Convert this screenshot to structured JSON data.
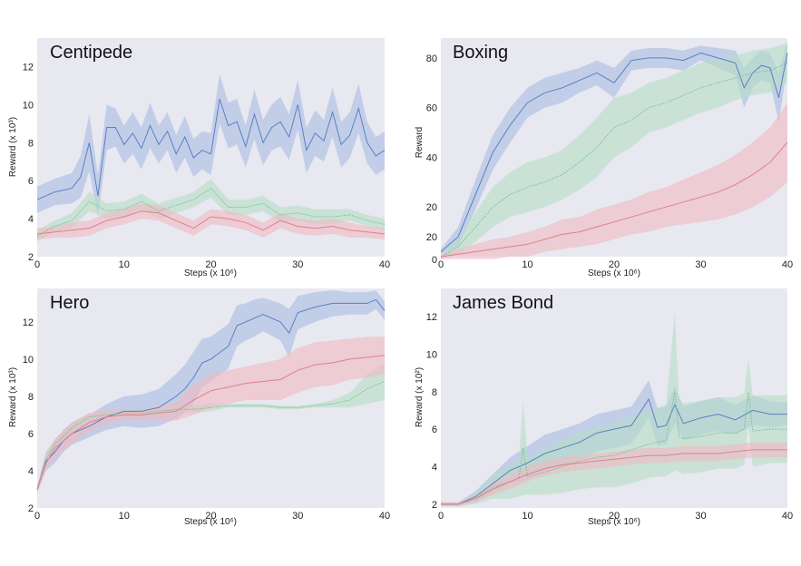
{
  "chart_data": [
    {
      "type": "line",
      "title": "Centipede",
      "xlabel": "Steps (x 10⁶)",
      "ylabel": "Reward (x 10³)",
      "xlim": [
        0,
        40
      ],
      "ylim": [
        2,
        13.5
      ],
      "xticks": [
        "0",
        "10",
        "20",
        "30",
        "40"
      ],
      "yticks": [
        "2",
        "4",
        "6",
        "8",
        "10",
        "12"
      ],
      "grid": false,
      "series": [
        {
          "name": "blue",
          "color": "#5b7fc2",
          "band_color": "#a9bde3",
          "style": "solid",
          "x": [
            0,
            2,
            4,
            5,
            6,
            7,
            8,
            9,
            10,
            11,
            12,
            13,
            14,
            15,
            16,
            17,
            18,
            19,
            20,
            21,
            22,
            23,
            24,
            25,
            26,
            27,
            28,
            29,
            30,
            31,
            32,
            33,
            34,
            35,
            36,
            37,
            38,
            39,
            40
          ],
          "mean": [
            5.0,
            5.4,
            5.6,
            6.2,
            8.0,
            5.2,
            8.8,
            8.8,
            7.9,
            8.5,
            7.7,
            8.9,
            7.9,
            8.6,
            7.4,
            8.3,
            7.2,
            7.6,
            7.4,
            10.3,
            8.9,
            9.1,
            7.8,
            9.5,
            8.0,
            8.8,
            9.1,
            8.3,
            10.0,
            7.6,
            8.5,
            8.1,
            9.6,
            7.9,
            8.4,
            9.8,
            8.0,
            7.3,
            7.6
          ],
          "band": [
            0.7,
            0.7,
            0.8,
            1.1,
            1.5,
            1.1,
            1.2,
            1.0,
            1.0,
            1.1,
            1.1,
            1.2,
            1.0,
            1.0,
            1.0,
            1.1,
            1.0,
            1.0,
            1.1,
            1.3,
            1.2,
            1.2,
            1.1,
            1.3,
            1.2,
            1.2,
            1.3,
            1.2,
            1.3,
            1.2,
            1.2,
            1.1,
            1.3,
            1.2,
            1.2,
            1.3,
            1.1,
            1.0,
            1.0
          ]
        },
        {
          "name": "green",
          "color": "#6fbe8f",
          "band_color": "#b5ddc4",
          "style": "dotted",
          "x": [
            0,
            2,
            4,
            6,
            8,
            10,
            12,
            14,
            16,
            18,
            20,
            22,
            24,
            26,
            28,
            30,
            32,
            34,
            36,
            38,
            40
          ],
          "mean": [
            3.1,
            3.6,
            3.9,
            4.9,
            4.4,
            4.5,
            4.9,
            4.4,
            4.7,
            5.0,
            5.6,
            4.6,
            4.6,
            4.8,
            4.2,
            4.3,
            4.1,
            4.1,
            4.2,
            3.9,
            3.7
          ],
          "band": [
            0.3,
            0.3,
            0.4,
            0.5,
            0.4,
            0.4,
            0.4,
            0.4,
            0.4,
            0.4,
            0.5,
            0.4,
            0.4,
            0.4,
            0.4,
            0.4,
            0.4,
            0.4,
            0.3,
            0.3,
            0.3
          ]
        },
        {
          "name": "red",
          "color": "#e07f8e",
          "band_color": "#f0b9c2",
          "style": "solid",
          "x": [
            0,
            2,
            4,
            6,
            8,
            10,
            12,
            14,
            16,
            18,
            20,
            22,
            24,
            26,
            28,
            30,
            32,
            34,
            36,
            38,
            40
          ],
          "mean": [
            3.2,
            3.3,
            3.4,
            3.5,
            3.9,
            4.1,
            4.4,
            4.3,
            3.9,
            3.5,
            4.1,
            4.0,
            3.8,
            3.4,
            3.9,
            3.6,
            3.5,
            3.6,
            3.4,
            3.3,
            3.2
          ],
          "band": [
            0.3,
            0.3,
            0.4,
            0.4,
            0.4,
            0.4,
            0.4,
            0.4,
            0.4,
            0.4,
            0.4,
            0.4,
            0.4,
            0.4,
            0.4,
            0.4,
            0.4,
            0.4,
            0.4,
            0.3,
            0.3
          ]
        }
      ]
    },
    {
      "type": "line",
      "title": "Boxing",
      "xlabel": "Steps (x 10⁶)",
      "ylabel": "Reward",
      "xlim": [
        0,
        40
      ],
      "ylim": [
        0,
        88
      ],
      "xticks": [
        "0",
        "10",
        "20",
        "30",
        "40"
      ],
      "yticks": [
        "0",
        "20",
        "20",
        "40",
        "60",
        "80"
      ],
      "grid": false,
      "series": [
        {
          "name": "blue",
          "color": "#5b7fc2",
          "band_color": "#a9bde3",
          "style": "solid",
          "x": [
            0,
            2,
            4,
            6,
            8,
            10,
            12,
            14,
            16,
            18,
            20,
            22,
            24,
            26,
            28,
            30,
            32,
            34,
            35,
            36,
            37,
            38,
            39,
            40
          ],
          "mean": [
            2,
            8,
            25,
            42,
            53,
            62,
            66,
            68,
            71,
            74,
            70,
            79,
            80,
            80,
            79,
            82,
            80,
            78,
            68,
            74,
            77,
            76,
            64,
            82
          ],
          "band": [
            1,
            4,
            6,
            7,
            7,
            6,
            6,
            6,
            5,
            5,
            6,
            4,
            4,
            4,
            4,
            3,
            4,
            5,
            8,
            6,
            6,
            6,
            10,
            5
          ]
        },
        {
          "name": "green",
          "color": "#6fbe8f",
          "band_color": "#b5ddc4",
          "style": "dotted",
          "x": [
            0,
            2,
            4,
            6,
            8,
            10,
            12,
            14,
            16,
            18,
            20,
            22,
            24,
            26,
            28,
            30,
            32,
            34,
            36,
            38,
            40
          ],
          "mean": [
            0,
            4,
            12,
            20,
            25,
            28,
            30,
            33,
            38,
            44,
            52,
            55,
            60,
            62,
            65,
            68,
            70,
            72,
            74,
            75,
            78
          ],
          "band": [
            1,
            3,
            6,
            8,
            9,
            10,
            10,
            10,
            11,
            12,
            12,
            11,
            10,
            10,
            10,
            10,
            10,
            9,
            9,
            9,
            8
          ]
        },
        {
          "name": "red",
          "color": "#e07f8e",
          "band_color": "#f0b9c2",
          "style": "solid",
          "x": [
            0,
            2,
            4,
            6,
            8,
            10,
            12,
            14,
            16,
            18,
            20,
            22,
            24,
            26,
            28,
            30,
            32,
            34,
            36,
            38,
            40
          ],
          "mean": [
            0,
            1,
            2,
            3,
            4,
            5,
            7,
            9,
            10,
            12,
            14,
            16,
            18,
            20,
            22,
            24,
            26,
            29,
            33,
            38,
            46
          ],
          "band": [
            1,
            2,
            3,
            4,
            4,
            5,
            5,
            6,
            6,
            7,
            7,
            7,
            8,
            8,
            9,
            10,
            11,
            12,
            13,
            14,
            16
          ]
        }
      ]
    },
    {
      "type": "line",
      "title": "Hero",
      "xlabel": "Steps (x 10⁶)",
      "ylabel": "Reward (x 10³)",
      "xlim": [
        0,
        40
      ],
      "ylim": [
        2,
        13.8
      ],
      "xticks": [
        "0",
        "10",
        "20",
        "30",
        "40"
      ],
      "yticks": [
        "2",
        "4",
        "6",
        "8",
        "10",
        "12"
      ],
      "grid": false,
      "series": [
        {
          "name": "blue",
          "color": "#5b7fc2",
          "band_color": "#a9bde3",
          "style": "solid",
          "x": [
            0,
            1,
            2,
            3,
            4,
            6,
            8,
            10,
            12,
            14,
            16,
            17,
            18,
            19,
            20,
            22,
            23,
            24,
            25,
            26,
            28,
            29,
            30,
            32,
            34,
            36,
            38,
            39,
            40
          ],
          "mean": [
            3.0,
            4.5,
            5.0,
            5.6,
            6.0,
            6.4,
            6.9,
            7.2,
            7.2,
            7.4,
            8.0,
            8.4,
            9.0,
            9.8,
            10.0,
            10.7,
            11.8,
            12.0,
            12.2,
            12.4,
            12.0,
            11.4,
            12.5,
            12.8,
            13.0,
            13.0,
            13.0,
            13.2,
            12.6
          ],
          "band": [
            0.2,
            0.5,
            0.6,
            0.6,
            0.6,
            0.6,
            0.7,
            0.8,
            0.9,
            1.0,
            1.2,
            1.3,
            1.4,
            1.3,
            1.2,
            1.2,
            1.1,
            1.0,
            1.0,
            0.9,
            1.0,
            1.3,
            0.9,
            0.8,
            0.7,
            0.6,
            0.6,
            0.5,
            0.5
          ]
        },
        {
          "name": "green",
          "color": "#6fbe8f",
          "band_color": "#b5ddc4",
          "style": "dotted",
          "x": [
            0,
            1,
            2,
            4,
            6,
            8,
            10,
            12,
            14,
            16,
            18,
            20,
            22,
            24,
            26,
            28,
            30,
            32,
            34,
            36,
            38,
            40
          ],
          "mean": [
            3.0,
            4.6,
            5.4,
            6.3,
            6.9,
            7.0,
            7.1,
            7.1,
            7.2,
            7.3,
            7.3,
            7.4,
            7.5,
            7.5,
            7.5,
            7.4,
            7.4,
            7.5,
            7.6,
            7.8,
            8.4,
            8.8
          ],
          "band": [
            0.2,
            0.4,
            0.3,
            0.3,
            0.2,
            0.2,
            0.2,
            0.2,
            0.2,
            0.2,
            0.2,
            0.2,
            0.1,
            0.1,
            0.1,
            0.1,
            0.1,
            0.1,
            0.2,
            0.4,
            0.8,
            1.0
          ]
        },
        {
          "name": "red",
          "color": "#e07f8e",
          "band_color": "#f0b9c2",
          "style": "solid",
          "x": [
            0,
            1,
            2,
            4,
            6,
            8,
            10,
            12,
            14,
            16,
            18,
            20,
            22,
            24,
            26,
            28,
            30,
            32,
            34,
            36,
            38,
            40
          ],
          "mean": [
            3.0,
            4.4,
            5.2,
            6.0,
            6.6,
            6.9,
            7.0,
            7.0,
            7.1,
            7.2,
            7.8,
            8.3,
            8.5,
            8.7,
            8.8,
            8.9,
            9.4,
            9.7,
            9.8,
            10.0,
            10.1,
            10.2
          ],
          "band": [
            0.2,
            0.4,
            0.5,
            0.6,
            0.5,
            0.4,
            0.3,
            0.3,
            0.4,
            0.5,
            0.8,
            0.9,
            0.9,
            0.9,
            1.0,
            1.1,
            1.2,
            1.2,
            1.2,
            1.1,
            1.1,
            1.0
          ]
        }
      ]
    },
    {
      "type": "line",
      "title": "James Bond",
      "xlabel": "Steps (x 10⁶)",
      "ylabel": "Reward (x 10²)",
      "xlim": [
        0,
        40
      ],
      "ylim": [
        1.8,
        13.5
      ],
      "xticks": [
        "0",
        "10",
        "20",
        "30",
        "40"
      ],
      "yticks": [
        "2",
        "4",
        "6",
        "8",
        "10",
        "12"
      ],
      "grid": false,
      "series": [
        {
          "name": "blue",
          "color": "#5b7fc2",
          "band_color": "#a9bde3",
          "style": "solid",
          "x": [
            0,
            2,
            4,
            6,
            8,
            10,
            12,
            14,
            16,
            18,
            20,
            22,
            24,
            25,
            26,
            27,
            28,
            30,
            32,
            34,
            36,
            38,
            40
          ],
          "mean": [
            2.0,
            2.0,
            2.4,
            3.1,
            3.8,
            4.2,
            4.7,
            5.0,
            5.3,
            5.8,
            6.0,
            6.2,
            7.6,
            6.1,
            6.2,
            7.3,
            6.3,
            6.6,
            6.8,
            6.5,
            7.0,
            6.8,
            6.8
          ],
          "band": [
            0.1,
            0.1,
            0.3,
            0.5,
            0.7,
            0.9,
            1.0,
            1.0,
            1.0,
            1.0,
            1.0,
            1.0,
            1.0,
            1.0,
            1.0,
            1.0,
            0.9,
            0.9,
            0.9,
            0.8,
            0.8,
            0.7,
            0.6
          ]
        },
        {
          "name": "green",
          "color": "#6fbe8f",
          "band_color": "#b5ddc4",
          "style": "dotted",
          "x": [
            0,
            2,
            4,
            6,
            8,
            9,
            9.5,
            10,
            12,
            14,
            16,
            18,
            20,
            22,
            24,
            26,
            27,
            27.5,
            28,
            30,
            32,
            34,
            35,
            35.5,
            36,
            38,
            40
          ],
          "mean": [
            2.0,
            2.0,
            2.3,
            2.9,
            3.2,
            3.4,
            5.0,
            3.5,
            3.7,
            4.0,
            4.3,
            4.5,
            4.6,
            4.9,
            5.2,
            5.4,
            8.0,
            5.6,
            5.5,
            5.6,
            5.8,
            5.8,
            6.0,
            8.0,
            5.9,
            6.0,
            6.0
          ],
          "band": [
            0.1,
            0.1,
            0.3,
            0.6,
            0.9,
            1.0,
            2.5,
            1.0,
            1.2,
            1.4,
            1.5,
            1.6,
            1.7,
            1.8,
            1.8,
            1.9,
            4.2,
            1.9,
            1.9,
            1.9,
            1.9,
            1.9,
            1.9,
            1.8,
            1.9,
            1.8,
            1.8
          ]
        },
        {
          "name": "red",
          "color": "#e07f8e",
          "band_color": "#f0b9c2",
          "style": "solid",
          "x": [
            0,
            2,
            4,
            6,
            8,
            10,
            12,
            14,
            16,
            18,
            20,
            22,
            24,
            26,
            28,
            30,
            32,
            34,
            36,
            38,
            40
          ],
          "mean": [
            2.0,
            2.0,
            2.3,
            2.8,
            3.2,
            3.6,
            3.9,
            4.1,
            4.2,
            4.3,
            4.4,
            4.5,
            4.6,
            4.6,
            4.7,
            4.7,
            4.7,
            4.8,
            4.9,
            4.9,
            4.9
          ],
          "band": [
            0.1,
            0.1,
            0.2,
            0.3,
            0.4,
            0.4,
            0.4,
            0.4,
            0.4,
            0.4,
            0.4,
            0.4,
            0.4,
            0.4,
            0.4,
            0.4,
            0.4,
            0.4,
            0.4,
            0.4,
            0.4
          ]
        }
      ]
    }
  ]
}
